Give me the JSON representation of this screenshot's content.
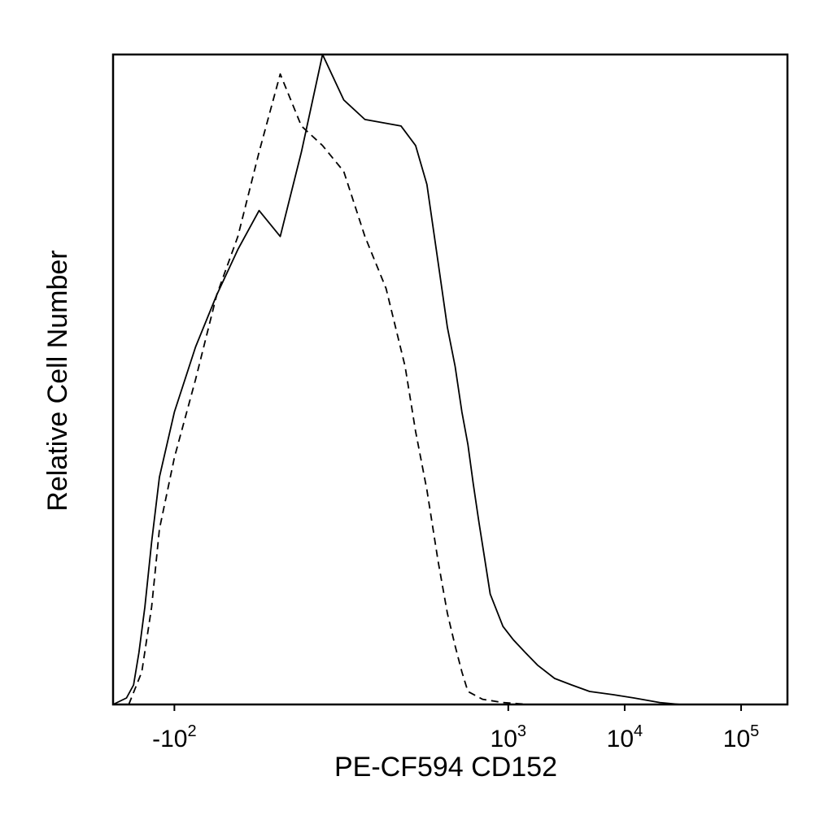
{
  "chart_data": {
    "type": "line",
    "title": "",
    "xlabel": "PE-CF594 CD152",
    "ylabel": "Relative Cell Number",
    "x_scale": "biexponential",
    "x_tick_labels": [
      {
        "base": "-10",
        "exp": "2",
        "value": -100
      },
      {
        "base": "10",
        "exp": "3",
        "value": 1000
      },
      {
        "base": "10",
        "exp": "4",
        "value": 10000
      },
      {
        "base": "10",
        "exp": "5",
        "value": 100000
      }
    ],
    "xlim": [
      -300,
      250000
    ],
    "ylim": [
      0,
      100
    ],
    "ylabel_ticks": "none",
    "grid": false,
    "legend": "none",
    "series": [
      {
        "style": "solid",
        "color": "#000000",
        "points": [
          [
            -300,
            0
          ],
          [
            -230,
            1
          ],
          [
            -200,
            3
          ],
          [
            -180,
            8
          ],
          [
            -160,
            15
          ],
          [
            -140,
            25
          ],
          [
            -120,
            35
          ],
          [
            -100,
            45
          ],
          [
            -80,
            55
          ],
          [
            -60,
            63
          ],
          [
            -40,
            70
          ],
          [
            -20,
            76
          ],
          [
            0,
            72
          ],
          [
            20,
            85
          ],
          [
            40,
            100
          ],
          [
            60,
            93
          ],
          [
            80,
            90
          ],
          [
            120,
            89
          ],
          [
            160,
            86
          ],
          [
            200,
            80
          ],
          [
            250,
            68
          ],
          [
            300,
            58
          ],
          [
            350,
            52
          ],
          [
            400,
            45
          ],
          [
            450,
            40
          ],
          [
            500,
            34
          ],
          [
            560,
            28
          ],
          [
            620,
            23
          ],
          [
            700,
            17
          ],
          [
            900,
            12
          ],
          [
            1100,
            10
          ],
          [
            1400,
            8
          ],
          [
            1800,
            6
          ],
          [
            2500,
            4
          ],
          [
            3500,
            3
          ],
          [
            5000,
            2
          ],
          [
            8000,
            1.5
          ],
          [
            12000,
            1
          ],
          [
            20000,
            0.3
          ],
          [
            30000,
            0
          ]
        ]
      },
      {
        "style": "dashed",
        "color": "#000000",
        "points": [
          [
            -220,
            0
          ],
          [
            -170,
            5
          ],
          [
            -140,
            15
          ],
          [
            -120,
            27
          ],
          [
            -100,
            38
          ],
          [
            -80,
            50
          ],
          [
            -60,
            63
          ],
          [
            -40,
            72
          ],
          [
            -20,
            85
          ],
          [
            0,
            97
          ],
          [
            20,
            89
          ],
          [
            40,
            86
          ],
          [
            60,
            82
          ],
          [
            80,
            72
          ],
          [
            100,
            64
          ],
          [
            130,
            52
          ],
          [
            160,
            42
          ],
          [
            200,
            33
          ],
          [
            250,
            22
          ],
          [
            300,
            14
          ],
          [
            350,
            9
          ],
          [
            400,
            5
          ],
          [
            450,
            2
          ],
          [
            600,
            0.8
          ],
          [
            900,
            0.3
          ],
          [
            1500,
            0
          ]
        ]
      }
    ]
  }
}
